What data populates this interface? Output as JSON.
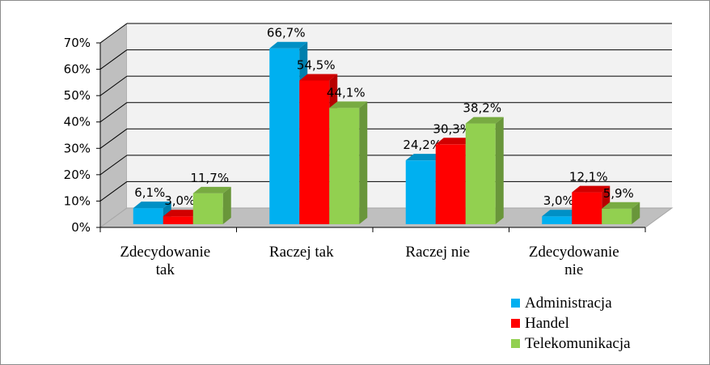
{
  "chart_data": {
    "type": "bar",
    "categories": [
      [
        "Zdecydowanie",
        "tak"
      ],
      [
        "Raczej tak"
      ],
      [
        "Raczej nie"
      ],
      [
        "Zdecydowanie",
        "nie"
      ]
    ],
    "series": [
      {
        "name": "Administracja",
        "values": [
          6.1,
          66.7,
          24.2,
          3.0
        ],
        "labels": [
          "6,1%",
          "66,7%",
          "24,2%",
          "3,0%"
        ],
        "color": "#00b0f0"
      },
      {
        "name": "Handel",
        "values": [
          3.0,
          54.5,
          30.3,
          12.1
        ],
        "labels": [
          "3,0%",
          "54,5%",
          "30,3%",
          "12,1%"
        ],
        "color": "#ff0000"
      },
      {
        "name": "Telekomunikacja",
        "values": [
          11.7,
          44.1,
          38.2,
          5.9
        ],
        "labels": [
          "11,7%",
          "44,1%",
          "38,2%",
          "5,9%"
        ],
        "color": "#92d050"
      }
    ],
    "yticks": [
      "0%",
      "10%",
      "20%",
      "30%",
      "40%",
      "50%",
      "60%",
      "70%"
    ],
    "ylim": [
      0,
      70
    ],
    "grid": true,
    "legend_position": "bottom-right",
    "style": "3d-clustered-column"
  }
}
